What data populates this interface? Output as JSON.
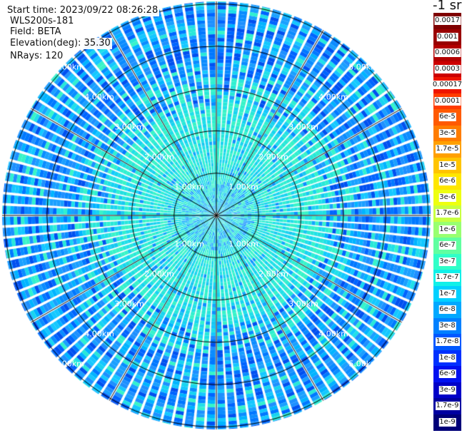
{
  "header": {
    "start_time": "Start time: 2023/09/22 08:26:28",
    "instrument": "WLS200s-181",
    "field": "Field: BETA",
    "elevation": "Elevation(deg): 35.30",
    "nrays": "NRays: 120"
  },
  "chart_data": {
    "type": "heatmap",
    "projection": "polar",
    "field": "BETA",
    "elevation_deg": 35.3,
    "n_rays": 120,
    "range_rings_km": [
      1,
      2,
      3,
      4,
      5
    ],
    "ring_labels": [
      "1.00km",
      "2.00km",
      "3.00km",
      "4.00km",
      "5.00km"
    ],
    "spoke_interval_deg": 30,
    "colorbar": {
      "title": "-1 sr",
      "scale": "log",
      "labels": [
        "0.0017",
        "0.001",
        "0.0006",
        "0.0003",
        "0.00017",
        "0.0001",
        "6e-5",
        "3e-5",
        "1.7e-5",
        "1e-5",
        "6e-6",
        "3e-6",
        "1.7e-6",
        "1e-6",
        "6e-7",
        "3e-7",
        "1.7e-7",
        "1e-7",
        "6e-8",
        "3e-8",
        "1.7e-8",
        "1e-8",
        "6e-9",
        "3e-9",
        "1.7e-9",
        "1e-9"
      ],
      "colors": [
        "#7f0000",
        "#990000",
        "#b20000",
        "#cc0000",
        "#ee1500",
        "#ff3c00",
        "#ff5a00",
        "#ff7c00",
        "#ffa000",
        "#ffc400",
        "#ffe600",
        "#eeff10",
        "#c8ff40",
        "#98ff70",
        "#60ffa0",
        "#30ffc8",
        "#10f0e8",
        "#00d0ff",
        "#00a8ff",
        "#0080ff",
        "#0058ff",
        "#0030ff",
        "#0010f0",
        "#0000c8",
        "#0000a0",
        "#000078"
      ]
    },
    "dominant_values": "inner ~1e-6 to 3e-7 (cyan-green), outer ~1e-7 to 1e-8 (blue)"
  }
}
